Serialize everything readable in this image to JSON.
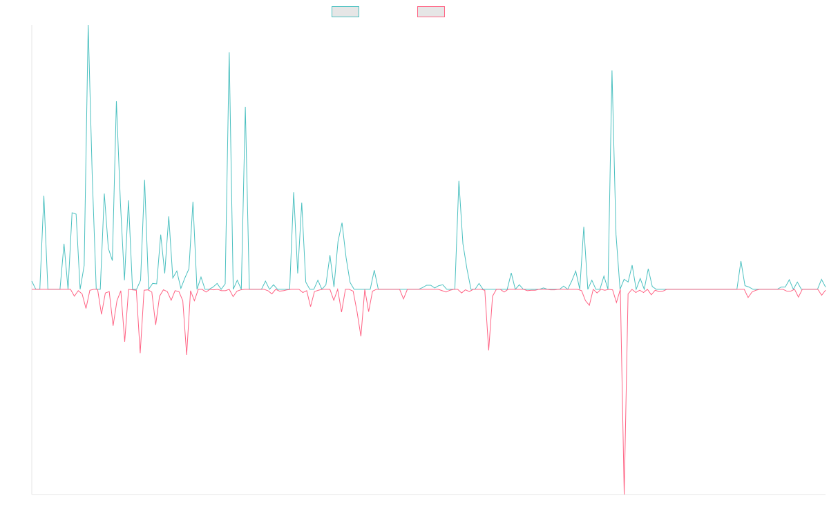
{
  "chart_data": {
    "type": "line",
    "title": "",
    "xlabel": "",
    "ylabel": "",
    "ylim": [
      -45,
      58
    ],
    "grid": false,
    "legend_position": "top-center",
    "series": [
      {
        "name": "",
        "color": "#4bc0c0",
        "fill": "#e6e6e6",
        "values": [
          1.8,
          0,
          0,
          20.5,
          0,
          0,
          0,
          0,
          10,
          0,
          16.8,
          16.5,
          0,
          5.2,
          58,
          25,
          0,
          0,
          21,
          9,
          6.3,
          41.3,
          19,
          2,
          19.5,
          0,
          0,
          2,
          24,
          0,
          1.3,
          1.2,
          12,
          3.5,
          16,
          2.5,
          4,
          0.2,
          2.5,
          4.5,
          19.2,
          0,
          2.7,
          0,
          0,
          0.5,
          1.3,
          0,
          1.2,
          52,
          0,
          2,
          0,
          40,
          0,
          0,
          0,
          0,
          1.8,
          0,
          1,
          0,
          0,
          0,
          0,
          21.3,
          3.5,
          19,
          1.6,
          0,
          0,
          2,
          0,
          1,
          7.5,
          0.5,
          10.5,
          14.6,
          7,
          1.5,
          0,
          0,
          0,
          0,
          0,
          4.2,
          0,
          0,
          0,
          0,
          0,
          0,
          0,
          0,
          0,
          0,
          0,
          0.4,
          0.9,
          0.9,
          0.3,
          0.8,
          1,
          0,
          0,
          0,
          23.8,
          10,
          4.5,
          0,
          0,
          1.3,
          0,
          0,
          0,
          0,
          0,
          0,
          0,
          3.6,
          0,
          1,
          0,
          0,
          0,
          0,
          0,
          0.3,
          0,
          0,
          0,
          0,
          0.7,
          0,
          1.8,
          4,
          0,
          13.7,
          0,
          2,
          0,
          0,
          2.9,
          0,
          48,
          12,
          0,
          2.2,
          1.6,
          5.3,
          0,
          2.4,
          0,
          4.5,
          0.6,
          0,
          0,
          0,
          0,
          0,
          0,
          0,
          0,
          0,
          0,
          0,
          0,
          0,
          0,
          0,
          0,
          0,
          0,
          0,
          0,
          0,
          6.2,
          0.8,
          0.5,
          0,
          0,
          0,
          0,
          0,
          0,
          0,
          0.5,
          0.5,
          2.1,
          0,
          1.6,
          0,
          0,
          0,
          0,
          0,
          2.2,
          0.5
        ]
      },
      {
        "name": "",
        "color": "#ff6384",
        "fill": "#e6e6e6",
        "values": [
          0,
          0,
          0,
          0,
          0,
          0,
          0,
          0,
          0,
          0,
          0,
          -1.5,
          -0.3,
          -1,
          -4.2,
          -0.2,
          0,
          0,
          -5.5,
          -0.8,
          -0.5,
          -8,
          -2.5,
          -0.3,
          -11.5,
          0,
          -0.1,
          -0.2,
          -14,
          -0.2,
          -0.1,
          -0.6,
          -7.8,
          -1.5,
          -0.1,
          -0.5,
          -2.4,
          -0.3,
          -0.5,
          -2.5,
          -14.4,
          -0.3,
          -2.5,
          0,
          0,
          -0.6,
          0,
          -0.1,
          0,
          -0.3,
          -0.3,
          0,
          -1.6,
          -0.4,
          -0.1,
          0,
          0,
          0,
          0,
          0,
          0,
          -0.3,
          -1,
          0,
          -0.4,
          -0.3,
          -0.1,
          0,
          0,
          0,
          -0.7,
          -0.3,
          -3.8,
          -0.5,
          -0.2,
          0,
          0,
          0,
          -2.4,
          0,
          -5,
          0,
          0,
          -0.4,
          -4.9,
          -10.3,
          0,
          -4.9,
          -0.4,
          0,
          0,
          0,
          0,
          0,
          0,
          0,
          -2.1,
          0,
          0,
          0,
          0,
          0,
          0,
          0,
          0,
          0,
          -0.3,
          -0.6,
          -0.2,
          0,
          0,
          -0.8,
          -0.1,
          -0.5,
          0,
          0,
          0,
          -0.2,
          -13.4,
          -1.5,
          0,
          0,
          -0.6,
          0,
          0,
          0,
          0,
          0,
          -0.3,
          -0.2,
          -0.2,
          0,
          0,
          0,
          -0.1,
          -0.1,
          0,
          0,
          0,
          0,
          0,
          0,
          -0.3,
          -2.5,
          -3.5,
          0,
          -0.8,
          0,
          -0.2,
          0,
          -0.1,
          -2.9,
          0,
          -45,
          -1,
          0,
          -0.7,
          -0.2,
          -0.7,
          0,
          -1.2,
          -0.2,
          -0.5,
          -0.4,
          0,
          0,
          0,
          0,
          0,
          0,
          0,
          0,
          0,
          0,
          0,
          0,
          0,
          0,
          0,
          0,
          0,
          0,
          0,
          0,
          0,
          -1.8,
          -0.6,
          -0.2,
          0,
          0,
          0,
          0,
          0,
          0,
          0,
          -0.4,
          -0.4,
          0,
          -1.7,
          0,
          0,
          0,
          0,
          0,
          -1.3,
          -0.2
        ]
      }
    ]
  }
}
